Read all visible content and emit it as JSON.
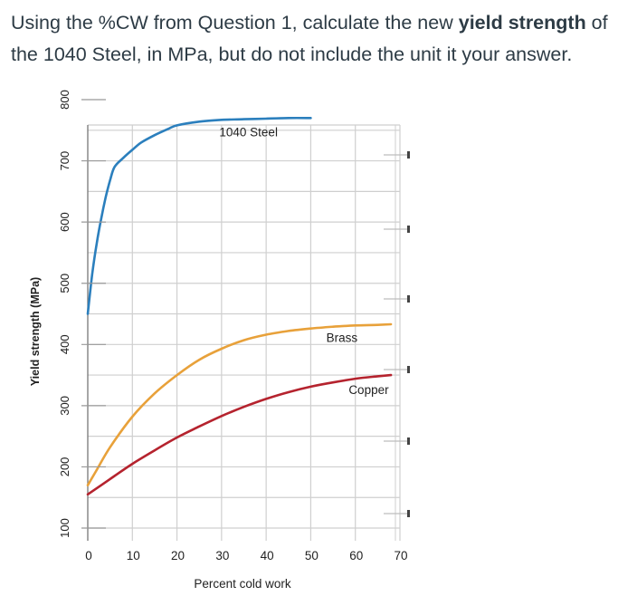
{
  "question": {
    "text_1": "Using the %CW from Question 1, calculate the new ",
    "bold_1": "yield strength",
    "text_2": " of the 1040 Steel, in MPa, but do not include the unit it your answer."
  },
  "chart_data": {
    "type": "line",
    "xlabel": "Percent cold work",
    "ylabel": "Yield strength (MPa)",
    "xlim": [
      0,
      70
    ],
    "ylim": [
      100,
      800
    ],
    "x_ticks": [
      "0",
      "10",
      "20",
      "30",
      "40",
      "50",
      "60",
      "70"
    ],
    "y_ticks": [
      "100",
      "200",
      "300",
      "400",
      "500",
      "600",
      "700",
      "800"
    ],
    "grid": true,
    "series": [
      {
        "name": "1040 Steel",
        "color": "#2b7fbd",
        "x": [
          0,
          1,
          2,
          3,
          4,
          5,
          6,
          8,
          10,
          12,
          15,
          18,
          20,
          25,
          30,
          35,
          40,
          45,
          50
        ],
        "y": [
          450,
          515,
          565,
          605,
          640,
          668,
          690,
          705,
          718,
          730,
          742,
          752,
          758,
          764,
          767,
          768,
          769,
          770,
          770
        ]
      },
      {
        "name": "Brass",
        "color": "#e8a13a",
        "x": [
          0,
          2,
          5,
          10,
          15,
          20,
          25,
          30,
          35,
          40,
          45,
          50,
          55,
          60,
          65,
          68
        ],
        "y": [
          170,
          195,
          232,
          282,
          320,
          350,
          375,
          393,
          407,
          416,
          422,
          426,
          429,
          431,
          432,
          433
        ]
      },
      {
        "name": "Copper",
        "color": "#b5232e",
        "x": [
          0,
          5,
          10,
          15,
          20,
          25,
          30,
          35,
          40,
          45,
          50,
          55,
          60,
          65,
          68
        ],
        "y": [
          155,
          180,
          205,
          227,
          248,
          266,
          283,
          298,
          311,
          322,
          331,
          338,
          344,
          348,
          350
        ]
      }
    ]
  }
}
